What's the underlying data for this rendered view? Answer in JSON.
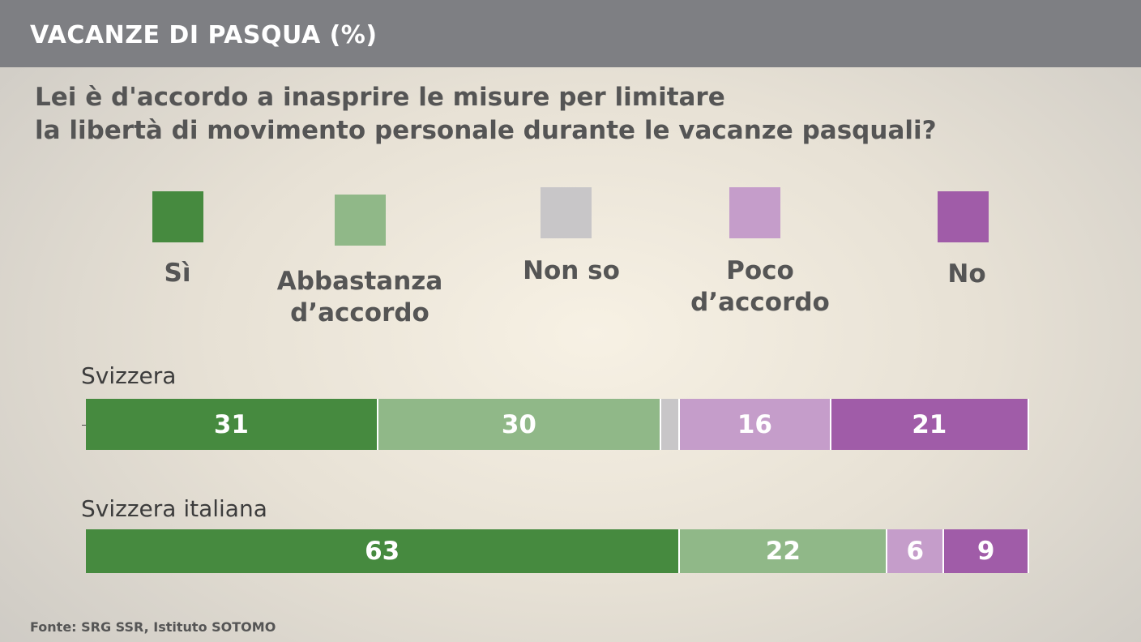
{
  "title": "VACANZE DI PASQUA (%)",
  "question": {
    "line1": "Lei è d'accordo a inasprire le misure per limitare",
    "line2": "la libertà di movimento personale durante le vacanze pasquali?"
  },
  "legend": [
    {
      "line1": "Sì",
      "line2": "",
      "color": "#468a3f"
    },
    {
      "line1": "Abbastanza",
      "line2": "d’accordo",
      "color": "#90b888"
    },
    {
      "line1": "Non so",
      "line2": "",
      "color": "#c8c6c8"
    },
    {
      "line1": "Poco",
      "line2": "d’accordo",
      "color": "#c59dca"
    },
    {
      "line1": "No",
      "line2": "",
      "color": "#a05ca8"
    }
  ],
  "rows": {
    "svizzera": "Svizzera",
    "svizzera_italiana": "Svizzera italiana"
  },
  "footer": "Fonte: SRG SSR, Istituto SOTOMO",
  "chart_data": {
    "type": "bar",
    "orientation": "horizontal",
    "stacked": true,
    "title": "VACANZE DI PASQUA (%)",
    "categories": [
      "Svizzera",
      "Svizzera italiana"
    ],
    "series": [
      {
        "name": "Sì",
        "values": [
          31,
          63
        ],
        "color": "#468a3f"
      },
      {
        "name": "Abbastanza d’accordo",
        "values": [
          30,
          22
        ],
        "color": "#90b888"
      },
      {
        "name": "Non so",
        "values": [
          2,
          0
        ],
        "color": "#c8c6c8"
      },
      {
        "name": "Poco d’accordo",
        "values": [
          16,
          6
        ],
        "color": "#c59dca"
      },
      {
        "name": "No",
        "values": [
          21,
          9
        ],
        "color": "#a05ca8"
      }
    ],
    "data_labels": [
      [
        "31",
        "30",
        "",
        "16",
        "21"
      ],
      [
        "63",
        "22",
        "",
        "6",
        "9"
      ]
    ],
    "xlim": [
      0,
      100
    ],
    "grid": false,
    "legend_position": "top"
  }
}
